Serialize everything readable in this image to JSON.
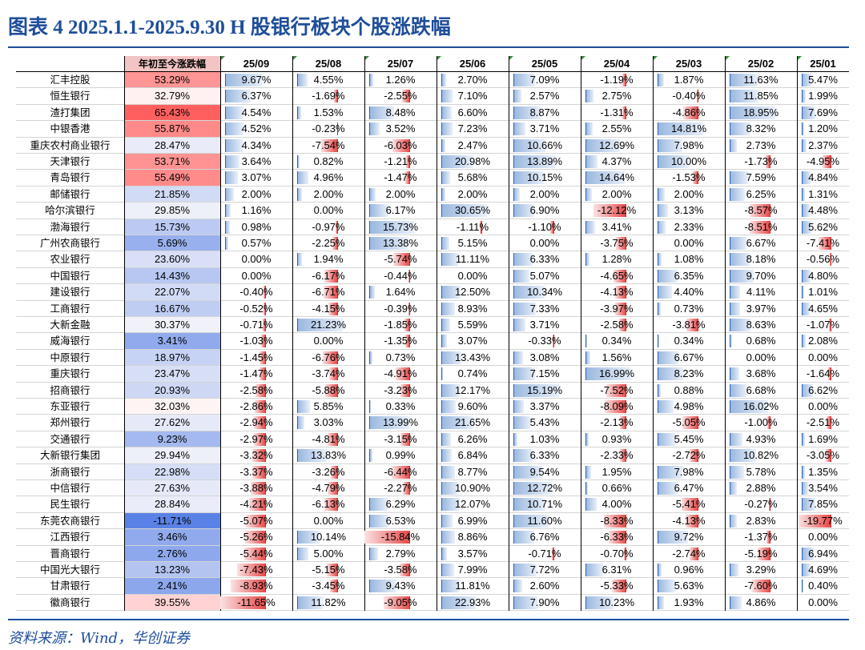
{
  "title": "图表 4   2025.1.1-2025.9.30   H 股银行板块个股涨跌幅",
  "source": "资料来源：Wind，华创证券",
  "colors": {
    "title": "#1f4e9a",
    "positive_bar": "#9bb8df",
    "negative_bar": "#e84a4a"
  },
  "chart_data": {
    "type": "table",
    "title": "2025.1.1-2025.9.30 H 股银行板块个股涨跌幅",
    "columns": [
      "年初至今涨跌幅",
      "25/09",
      "25/08",
      "25/07",
      "25/06",
      "25/05",
      "25/04",
      "25/03",
      "25/02",
      "25/01"
    ],
    "rows": [
      {
        "name": "汇丰控股",
        "ytd": "53.29%",
        "values": [
          "9.67%",
          "4.55%",
          "1.26%",
          "2.70%",
          "7.09%",
          "-1.19%",
          "1.87%",
          "11.63%",
          "5.47%"
        ]
      },
      {
        "name": "恒生银行",
        "ytd": "32.79%",
        "values": [
          "6.37%",
          "-1.69%",
          "-2.55%",
          "7.10%",
          "2.57%",
          "2.75%",
          "-0.40%",
          "11.85%",
          "1.99%"
        ]
      },
      {
        "name": "渣打集团",
        "ytd": "65.43%",
        "values": [
          "4.54%",
          "1.53%",
          "8.48%",
          "6.60%",
          "8.87%",
          "-1.31%",
          "-4.86%",
          "18.95%",
          "7.69%"
        ]
      },
      {
        "name": "中银香港",
        "ytd": "55.87%",
        "values": [
          "4.52%",
          "-0.23%",
          "3.52%",
          "7.23%",
          "3.71%",
          "2.55%",
          "14.81%",
          "8.32%",
          "1.20%"
        ]
      },
      {
        "name": "重庆农村商业银行",
        "ytd": "28.47%",
        "values": [
          "4.34%",
          "-7.54%",
          "-6.03%",
          "2.47%",
          "10.66%",
          "12.69%",
          "7.98%",
          "2.73%",
          "2.37%"
        ]
      },
      {
        "name": "天津银行",
        "ytd": "53.71%",
        "values": [
          "3.64%",
          "0.82%",
          "-1.21%",
          "20.98%",
          "13.89%",
          "4.37%",
          "10.00%",
          "-1.73%",
          "-4.95%"
        ]
      },
      {
        "name": "青岛银行",
        "ytd": "55.49%",
        "values": [
          "3.07%",
          "4.96%",
          "-1.47%",
          "5.68%",
          "10.15%",
          "14.64%",
          "-1.53%",
          "7.59%",
          "4.84%"
        ]
      },
      {
        "name": "邮储银行",
        "ytd": "21.85%",
        "values": [
          "2.00%",
          "2.00%",
          "2.00%",
          "2.00%",
          "2.00%",
          "2.00%",
          "2.00%",
          "6.25%",
          "1.31%"
        ]
      },
      {
        "name": "哈尔滨银行",
        "ytd": "29.85%",
        "values": [
          "1.16%",
          "0.00%",
          "6.17%",
          "30.65%",
          "6.90%",
          "-12.12%",
          "3.13%",
          "-8.57%",
          "4.48%"
        ]
      },
      {
        "name": "渤海银行",
        "ytd": "15.73%",
        "values": [
          "0.98%",
          "-0.97%",
          "15.73%",
          "-1.11%",
          "-1.10%",
          "3.41%",
          "2.33%",
          "-8.51%",
          "5.62%"
        ]
      },
      {
        "name": "广州农商银行",
        "ytd": "5.69%",
        "values": [
          "0.57%",
          "-2.25%",
          "13.38%",
          "5.15%",
          "0.00%",
          "-3.75%",
          "0.00%",
          "6.67%",
          "-7.41%"
        ]
      },
      {
        "name": "农业银行",
        "ytd": "23.60%",
        "values": [
          "0.00%",
          "1.94%",
          "-5.74%",
          "11.11%",
          "6.33%",
          "1.28%",
          "1.08%",
          "8.18%",
          "-0.56%"
        ]
      },
      {
        "name": "中国银行",
        "ytd": "14.43%",
        "values": [
          "0.00%",
          "-6.17%",
          "-0.44%",
          "0.00%",
          "5.07%",
          "-4.65%",
          "6.35%",
          "9.70%",
          "4.80%"
        ]
      },
      {
        "name": "建设银行",
        "ytd": "22.07%",
        "values": [
          "-0.40%",
          "-6.71%",
          "1.64%",
          "12.50%",
          "10.34%",
          "-4.13%",
          "4.40%",
          "4.11%",
          "1.01%"
        ]
      },
      {
        "name": "工商银行",
        "ytd": "16.67%",
        "values": [
          "-0.52%",
          "-4.15%",
          "-0.39%",
          "8.93%",
          "7.33%",
          "-3.97%",
          "0.73%",
          "3.97%",
          "4.65%"
        ]
      },
      {
        "name": "大新金融",
        "ytd": "30.37%",
        "values": [
          "-0.71%",
          "21.23%",
          "-1.85%",
          "5.59%",
          "3.71%",
          "-2.58%",
          "-3.81%",
          "8.63%",
          "-1.07%"
        ]
      },
      {
        "name": "威海银行",
        "ytd": "3.41%",
        "values": [
          "-1.03%",
          "0.00%",
          "-1.35%",
          "3.07%",
          "-0.33%",
          "0.34%",
          "0.34%",
          "0.68%",
          "2.08%"
        ]
      },
      {
        "name": "中原银行",
        "ytd": "18.97%",
        "values": [
          "-1.45%",
          "-6.76%",
          "0.73%",
          "13.43%",
          "3.08%",
          "1.56%",
          "6.67%",
          "0.00%",
          "0.00%"
        ]
      },
      {
        "name": "重庆银行",
        "ytd": "23.47%",
        "values": [
          "-1.47%",
          "-3.74%",
          "-4.91%",
          "0.74%",
          "7.15%",
          "16.99%",
          "8.23%",
          "3.68%",
          "-1.64%"
        ]
      },
      {
        "name": "招商银行",
        "ytd": "20.93%",
        "values": [
          "-2.58%",
          "-5.88%",
          "-3.23%",
          "12.17%",
          "15.19%",
          "-7.52%",
          "0.88%",
          "6.68%",
          "6.62%"
        ]
      },
      {
        "name": "东亚银行",
        "ytd": "32.03%",
        "values": [
          "-2.86%",
          "5.85%",
          "0.33%",
          "9.60%",
          "3.37%",
          "-8.09%",
          "4.98%",
          "16.02%",
          "0.00%"
        ]
      },
      {
        "name": "郑州银行",
        "ytd": "27.62%",
        "values": [
          "-2.94%",
          "3.03%",
          "13.99%",
          "21.65%",
          "5.43%",
          "-2.13%",
          "-5.05%",
          "-1.00%",
          "-2.51%"
        ]
      },
      {
        "name": "交通银行",
        "ytd": "9.23%",
        "values": [
          "-2.97%",
          "-4.81%",
          "-3.15%",
          "6.26%",
          "1.03%",
          "0.93%",
          "5.45%",
          "4.93%",
          "1.69%"
        ]
      },
      {
        "name": "大新银行集团",
        "ytd": "29.94%",
        "values": [
          "-3.32%",
          "13.83%",
          "0.99%",
          "6.84%",
          "6.33%",
          "-2.33%",
          "-2.72%",
          "10.82%",
          "-3.05%"
        ]
      },
      {
        "name": "浙商银行",
        "ytd": "22.98%",
        "values": [
          "-3.37%",
          "-3.26%",
          "-6.44%",
          "8.77%",
          "9.54%",
          "1.95%",
          "7.98%",
          "5.78%",
          "1.35%"
        ]
      },
      {
        "name": "中信银行",
        "ytd": "27.63%",
        "values": [
          "-3.88%",
          "-4.79%",
          "-2.27%",
          "10.90%",
          "12.72%",
          "0.66%",
          "6.47%",
          "2.88%",
          "3.54%"
        ]
      },
      {
        "name": "民生银行",
        "ytd": "28.84%",
        "values": [
          "-4.21%",
          "-6.13%",
          "6.29%",
          "12.07%",
          "10.71%",
          "4.00%",
          "-5.41%",
          "-0.27%",
          "7.85%"
        ]
      },
      {
        "name": "东莞农商银行",
        "ytd": "-11.71%",
        "values": [
          "-5.07%",
          "0.00%",
          "6.53%",
          "6.99%",
          "11.60%",
          "-8.33%",
          "-4.13%",
          "2.83%",
          "-19.77%"
        ]
      },
      {
        "name": "江西银行",
        "ytd": "3.46%",
        "values": [
          "-5.26%",
          "10.14%",
          "-15.84%",
          "8.86%",
          "6.76%",
          "-6.33%",
          "9.72%",
          "-1.37%",
          "0.00%"
        ]
      },
      {
        "name": "晋商银行",
        "ytd": "2.76%",
        "values": [
          "-5.44%",
          "5.00%",
          "2.79%",
          "3.57%",
          "-0.71%",
          "-0.70%",
          "-2.74%",
          "-5.19%",
          "6.94%"
        ]
      },
      {
        "name": "中国光大银行",
        "ytd": "13.23%",
        "values": [
          "-7.43%",
          "-5.15%",
          "-3.58%",
          "7.99%",
          "7.72%",
          "6.31%",
          "0.96%",
          "3.29%",
          "4.69%"
        ]
      },
      {
        "name": "甘肃银行",
        "ytd": "2.41%",
        "values": [
          "-8.93%",
          "-3.45%",
          "9.43%",
          "11.81%",
          "2.60%",
          "-5.33%",
          "5.63%",
          "-7.60%",
          "0.40%"
        ]
      },
      {
        "name": "徽商银行",
        "ytd": "39.55%",
        "values": [
          "-11.65%",
          "11.82%",
          "-9.05%",
          "22.93%",
          "7.90%",
          "10.23%",
          "1.93%",
          "4.86%",
          "0.00%"
        ]
      }
    ]
  }
}
